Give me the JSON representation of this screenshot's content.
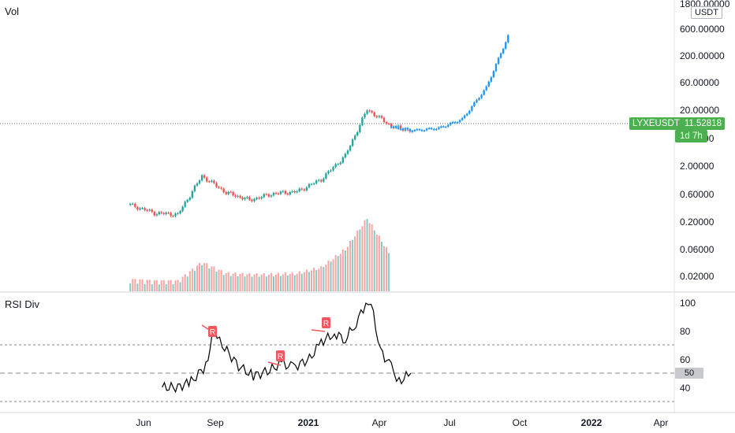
{
  "colors": {
    "up": "#26a69a",
    "down": "#ef5350",
    "projection": "#2196f3",
    "vol_up": "#80cbc4",
    "vol_down": "#f5a5a3",
    "rsi_line": "#000000",
    "div_marker": "#f0585f",
    "price_tag": "#4caf50",
    "grid_dashed": "#888888"
  },
  "price_pane": {
    "title": "Vol",
    "unit": "USDT",
    "symbol": "LYXEUSDT",
    "last_price": "11.52818",
    "countdown": "1d 7h",
    "axis_ticks": [
      "1800.00000",
      "600.00000",
      "200.00000",
      "60.00000",
      "20.00000",
      "6.00000",
      "2.00000",
      "0.60000",
      "0.20000",
      "0.06000",
      "0.02000"
    ]
  },
  "rsi_pane": {
    "title": "RSI Div",
    "axis_ticks": [
      "100",
      "80",
      "60",
      "50",
      "40"
    ],
    "current_value": "50",
    "marker_label": "R"
  },
  "x_axis": {
    "labels": [
      "Jun",
      "Sep",
      "2021",
      "Apr",
      "Jul",
      "Oct",
      "2022",
      "Apr"
    ]
  },
  "chart_data": [
    {
      "type": "candlestick",
      "title": "LYXEUSDT",
      "yscale": "log",
      "ylabel": "USDT",
      "ylim": [
        0.015,
        1800
      ],
      "x": [
        "2020-05",
        "2020-06",
        "2020-07",
        "2020-08",
        "2020-09",
        "2020-10",
        "2020-11",
        "2020-12",
        "2021-01",
        "2021-02",
        "2021-03",
        "2021-04",
        "2021-05",
        "2021-06",
        "2021-07",
        "2021-08",
        "2021-09"
      ],
      "series": [
        {
          "close": [
            0.45,
            0.32,
            0.3,
            1.5,
            0.75,
            0.55,
            0.72,
            0.78,
            1.3,
            3.5,
            24,
            12,
            9.5,
            null,
            null,
            null,
            null
          ]
        },
        {
          "close": [
            null,
            null,
            null,
            null,
            null,
            null,
            null,
            null,
            null,
            null,
            null,
            11.5,
            10,
            11,
            16,
            60,
            650
          ]
        }
      ]
    },
    {
      "type": "bar",
      "title": "Vol",
      "x": [
        "2020-05",
        "2020-06",
        "2020-07",
        "2020-08",
        "2020-09",
        "2020-10",
        "2020-11",
        "2020-12",
        "2021-01",
        "2021-02",
        "2021-03",
        "2021-04"
      ],
      "values": [
        0.017,
        0.016,
        0.016,
        0.035,
        0.022,
        0.021,
        0.021,
        0.022,
        0.028,
        0.06,
        0.22,
        0.045
      ]
    },
    {
      "type": "line",
      "title": "RSI Div",
      "ylim": [
        30,
        100
      ],
      "x": [
        "2020-06-25",
        "2020-07-15",
        "2020-08-01",
        "2020-08-20",
        "2020-08-31",
        "2020-09-10",
        "2020-10-01",
        "2020-10-20",
        "2020-11-10",
        "2020-11-25",
        "2020-12-10",
        "2020-12-31",
        "2021-01-15",
        "2021-02-01",
        "2021-02-15",
        "2021-03-01",
        "2021-03-10",
        "2021-03-20",
        "2021-04-01",
        "2021-04-15",
        "2021-04-25",
        "2021-05-10"
      ],
      "series": [
        {
          "values": [
            40,
            40,
            44,
            55,
            82,
            70,
            55,
            48,
            52,
            57,
            54,
            60,
            72,
            78,
            74,
            86,
            95,
            99,
            66,
            54,
            44,
            50
          ]
        }
      ],
      "hlines": [
        70,
        50,
        30
      ],
      "divergence_markers": [
        "R",
        "R",
        "R"
      ]
    }
  ]
}
